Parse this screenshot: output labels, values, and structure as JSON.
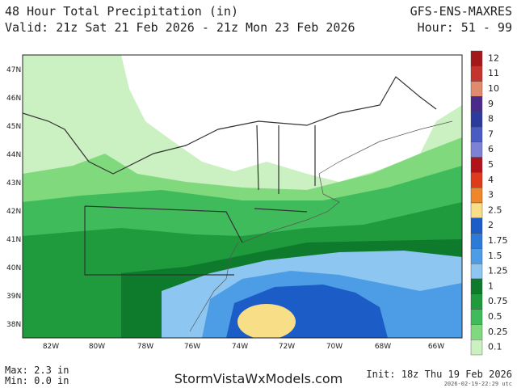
{
  "header": {
    "title": "48 Hour Total Precipitation (in)",
    "model": "GFS-ENS-MAXRES",
    "valid": "Valid: 21z Sat 21 Feb 2026 - 21z Mon 23 Feb 2026",
    "hours": "Hour: 51 - 99"
  },
  "map": {
    "lat_labels": [
      "47N",
      "46N",
      "45N",
      "44N",
      "43N",
      "42N",
      "41N",
      "40N",
      "39N",
      "38N"
    ],
    "lon_labels": [
      "82W",
      "80W",
      "78W",
      "76W",
      "74W",
      "72W",
      "70W",
      "68W",
      "66W"
    ]
  },
  "legend": [
    {
      "label": "12",
      "color": "#a3191b"
    },
    {
      "label": "11",
      "color": "#c4332c"
    },
    {
      "label": "10",
      "color": "#e08a6e"
    },
    {
      "label": "9",
      "color": "#4b2a8c"
    },
    {
      "label": "8",
      "color": "#2c3a9e"
    },
    {
      "label": "7",
      "color": "#4a5cc4"
    },
    {
      "label": "6",
      "color": "#7d82d6"
    },
    {
      "label": "5",
      "color": "#b0141a"
    },
    {
      "label": "4",
      "color": "#de3b1c"
    },
    {
      "label": "3",
      "color": "#f0862a"
    },
    {
      "label": "2.5",
      "color": "#f8de86"
    },
    {
      "label": "2",
      "color": "#1c5cc6"
    },
    {
      "label": "1.75",
      "color": "#2d7bd8"
    },
    {
      "label": "1.5",
      "color": "#4d9ce6"
    },
    {
      "label": "1.25",
      "color": "#8dc6f0"
    },
    {
      "label": "1",
      "color": "#0d7a2c"
    },
    {
      "label": "0.75",
      "color": "#1f9a3c"
    },
    {
      "label": "0.5",
      "color": "#3fbb5b"
    },
    {
      "label": "0.25",
      "color": "#80d97c"
    },
    {
      "label": "0.1",
      "color": "#cbf0c2"
    }
  ],
  "footer": {
    "max": "Max: 2.3 in",
    "min": "Min: 0.0 in",
    "site": "StormVistaWxModels.com",
    "init": "Init: 18z Thu 19 Feb 2026",
    "stamp": "2026-02-19-22:29 utc"
  }
}
